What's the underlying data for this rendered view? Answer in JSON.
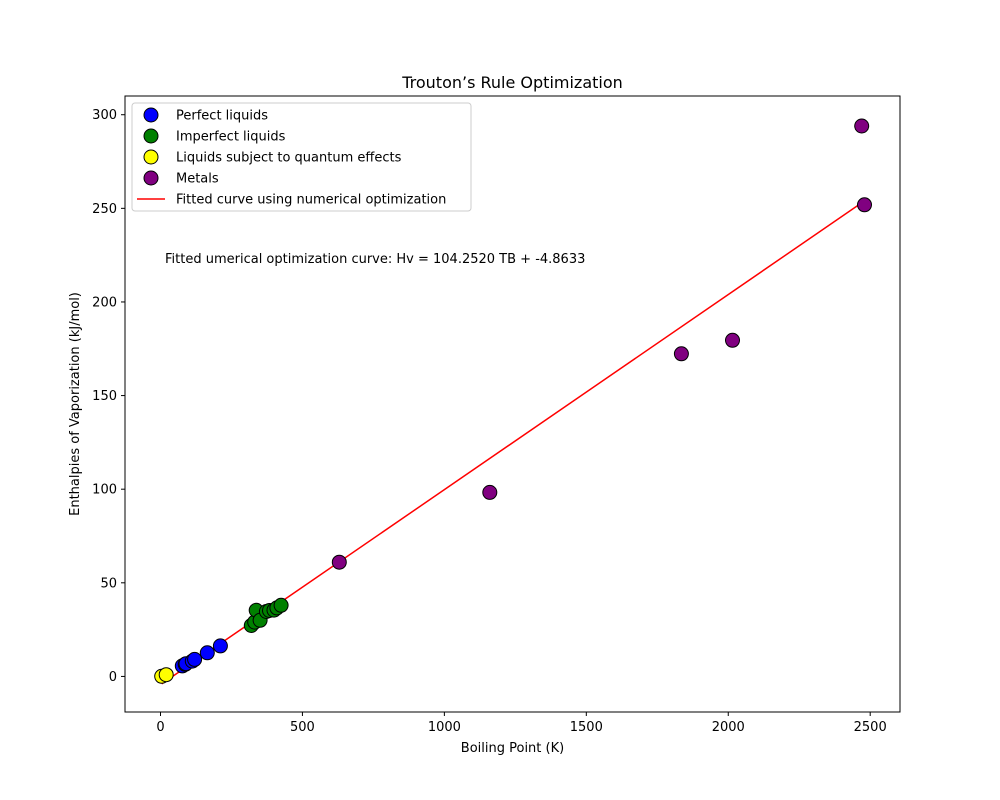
{
  "chart_data": {
    "type": "scatter",
    "title": "Trouton’s Rule Optimization",
    "xlabel": "Boiling Point (K)",
    "ylabel": "Enthalpies of Vaporization (kJ/mol)",
    "xlim": [
      -125,
      2605
    ],
    "ylim": [
      -19,
      310
    ],
    "xticks": [
      0,
      500,
      1000,
      1500,
      2000,
      2500
    ],
    "yticks": [
      0,
      50,
      100,
      150,
      200,
      250,
      300
    ],
    "grid": false,
    "legend_position": "upper left",
    "annotation": "Fitted umerical optimization curve: Hv = 104.2520 TB + -4.8633",
    "series": [
      {
        "name": "Perfect liquids",
        "kind": "scatter",
        "color": "#0000ff",
        "points": [
          [
            77,
            5.6
          ],
          [
            87,
            6.5
          ],
          [
            90,
            6.8
          ],
          [
            112,
            8.2
          ],
          [
            120,
            9.1
          ],
          [
            165,
            12.6
          ],
          [
            211,
            16.3
          ]
        ]
      },
      {
        "name": "Imperfect liquids",
        "kind": "scatter",
        "color": "#008000",
        "points": [
          [
            320,
            27.2
          ],
          [
            332,
            29.0
          ],
          [
            337,
            35.3
          ],
          [
            351,
            30.0
          ],
          [
            373,
            34.7
          ],
          [
            384,
            35.2
          ],
          [
            400,
            35.4
          ],
          [
            410,
            36.6
          ],
          [
            425,
            38.0
          ]
        ]
      },
      {
        "name": "Liquids subject to quantum effects",
        "kind": "scatter",
        "color": "#ffff00",
        "points": [
          [
            4.2,
            0.08
          ],
          [
            20,
            0.9
          ]
        ]
      },
      {
        "name": "Metals",
        "kind": "scatter",
        "color": "#800080",
        "points": [
          [
            630,
            61.0
          ],
          [
            1160,
            98.3
          ],
          [
            1835,
            172.3
          ],
          [
            2015,
            179.5
          ],
          [
            2470,
            294.0
          ],
          [
            2480,
            251.9
          ]
        ]
      },
      {
        "name": "Fitted curve using numerical optimization",
        "kind": "line",
        "color": "#ff0000",
        "points": [
          [
            4.2,
            -4.0
          ],
          [
            2480,
            254.0
          ]
        ]
      }
    ]
  }
}
